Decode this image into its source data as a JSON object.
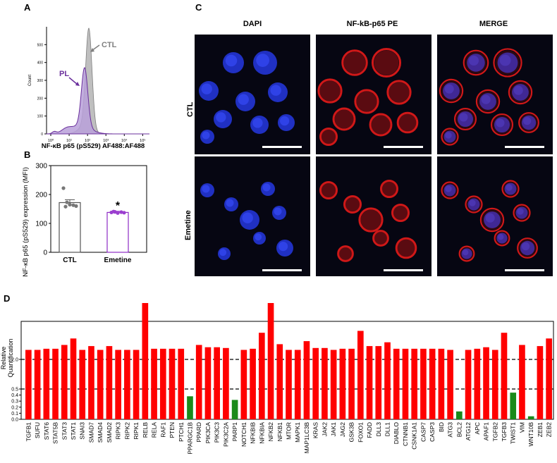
{
  "panels": {
    "a": "A",
    "b": "B",
    "c": "C",
    "d": "D"
  },
  "panel_a": {
    "xlabel": "NF-κB p65 (pS529) AF488:AF488",
    "ylabel": "Count",
    "yticks": [
      "0",
      "100",
      "200",
      "300",
      "400",
      "500"
    ],
    "xticks": [
      "10⁰",
      "10¹",
      "10²",
      "10³",
      "10⁴",
      "10⁵"
    ],
    "label_ctl": "CTL",
    "label_pl": "PL",
    "colors": {
      "ctl_fill": "#bfbfbf",
      "ctl_line": "#7f7f7f",
      "pl_fill": "#b9a0d9",
      "pl_line": "#6a2f9c"
    }
  },
  "panel_b": {
    "ylabel": "NF-κB p65 (pS529) expression (MFI)",
    "yticks": [
      "0",
      "100",
      "200",
      "300"
    ],
    "significance": "*"
  },
  "panel_c": {
    "col_titles": [
      "DAPI",
      "NF-kB-p65 PE",
      "MERGE"
    ],
    "row_titles": [
      "CTL",
      "Emetine"
    ],
    "title_colors": {
      "dapi": "#1f5fff",
      "pe": "#e00000",
      "merge": "#000000"
    }
  },
  "panel_d": {
    "ylabel_line1": "Relative",
    "ylabel_line2": "Quantification",
    "ytick_labels": [
      "2.0",
      "0.5",
      "0.4",
      "0.3",
      "0.2",
      "0.1",
      "0.0"
    ],
    "colors": {
      "up": "#ff0000",
      "down": "#1a8a1a"
    }
  },
  "chart_data": [
    {
      "type": "bar",
      "panel": "B",
      "categories": [
        "CTL",
        "Emetine"
      ],
      "values": [
        172,
        138
      ],
      "errors": [
        10,
        4
      ],
      "points": [
        [
          222,
          173,
          165,
          163,
          160,
          158
        ],
        [
          138,
          140,
          136,
          139,
          137,
          141
        ]
      ],
      "ylabel": "NF-κB p65 (pS529) expression (MFI)",
      "ylim": [
        0,
        300
      ],
      "colors": [
        "#555555",
        "#8e2bc4"
      ]
    },
    {
      "type": "bar",
      "panel": "D",
      "categories": [
        "TGFB1",
        "SUFU",
        "STAT6",
        "STAT5B",
        "STAT3",
        "STAT1",
        "SNAI3",
        "SMAD7",
        "SMAD4",
        "SMAD2",
        "RIPK3",
        "RIPK2",
        "RIPK1",
        "RELB",
        "RELA",
        "RAF1",
        "PTEN",
        "PTCH1",
        "PPARGC1B",
        "PPARD",
        "PIK3CA",
        "PIK3C3",
        "PIK3C2A",
        "PARP1",
        "NOTCH1",
        "NFKBIB",
        "NFKBIA",
        "NFKB2",
        "NFKB1",
        "MTOR",
        "MAPK1",
        "MAP1LC3B",
        "KRAS",
        "JAK2",
        "JAK1",
        "JAG2",
        "GSK3B",
        "FOXO1",
        "FADD",
        "DLL3",
        "DLL1",
        "DIABLO",
        "CTNNB1",
        "CSNK1A1",
        "CASP7",
        "CASP3",
        "BID",
        "ATG3",
        "BCL2",
        "ATG12",
        "APC",
        "APAF1",
        "TGFB2",
        "TGFB3",
        "TWIST1",
        "VIM",
        "WNT10B",
        "ZEB1",
        "ZEB2"
      ],
      "values": [
        2.25,
        2.25,
        2.28,
        2.28,
        2.38,
        2.55,
        2.25,
        2.35,
        2.25,
        2.35,
        2.25,
        2.25,
        2.25,
        3.8,
        2.28,
        2.28,
        2.28,
        2.28,
        0.38,
        2.38,
        2.32,
        2.32,
        2.3,
        0.32,
        2.25,
        2.28,
        2.7,
        3.78,
        2.4,
        2.25,
        2.25,
        2.48,
        2.3,
        2.3,
        2.25,
        2.28,
        2.28,
        2.75,
        2.35,
        2.35,
        2.45,
        2.28,
        2.28,
        2.28,
        2.28,
        2.28,
        2.28,
        2.25,
        0.13,
        2.25,
        2.28,
        2.32,
        2.25,
        2.7,
        0.44,
        2.38,
        0.05,
        2.35,
        2.55
      ],
      "reference_lines": [
        2.0,
        0.5
      ],
      "ylabel": "Relative Quantification",
      "colors": {
        "up": "#ff0000",
        "down": "#1a8a1a"
      }
    }
  ]
}
